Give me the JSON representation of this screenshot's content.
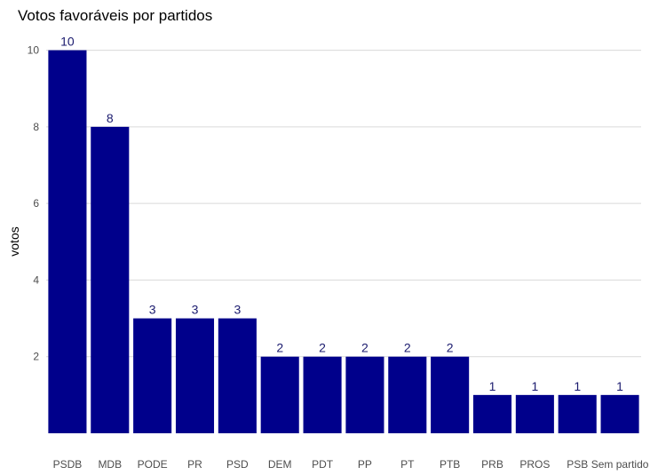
{
  "chart_data": {
    "type": "bar",
    "title": "Votos favoráveis por partidos",
    "xlabel": "",
    "ylabel": "votos",
    "categories": [
      "PSDB",
      "MDB",
      "PODE",
      "PR",
      "PSD",
      "DEM",
      "PDT",
      "PP",
      "PT",
      "PTB",
      "PRB",
      "PROS",
      "PSB",
      "Sem partido"
    ],
    "values": [
      10,
      8,
      3,
      3,
      3,
      2,
      2,
      2,
      2,
      2,
      1,
      1,
      1,
      1
    ],
    "ylim": [
      0,
      10.5
    ],
    "yticks": [
      2,
      4,
      6,
      8,
      10
    ],
    "grid": true,
    "legend": "none",
    "bar_color": "#00008B",
    "label_color": "#1a1a6e"
  }
}
